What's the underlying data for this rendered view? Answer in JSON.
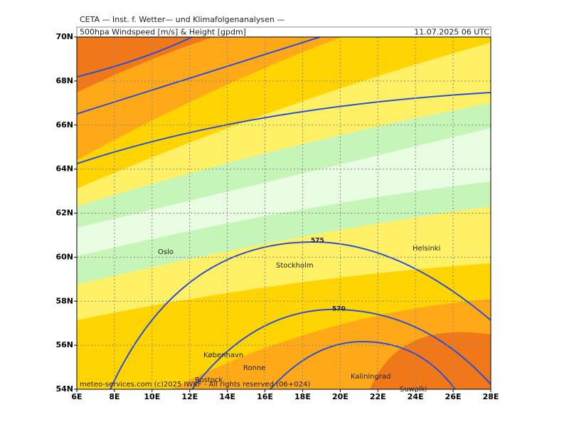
{
  "header": {
    "title": "CETA — Inst. f. Wetter— und Klimafolgenanalysen —",
    "subtitle": "500hpa Windspeed [m/s] & Height [gpdm]",
    "valid_time": "11.07.2025 06 UTC"
  },
  "lat_labels": [
    "70N",
    "68N",
    "66N",
    "64N",
    "62N",
    "60N",
    "58N",
    "56N",
    "54N"
  ],
  "lon_labels": [
    "6E",
    "8E",
    "10E",
    "12E",
    "14E",
    "16E",
    "18E",
    "20E",
    "22E",
    "24E",
    "26E",
    "28E"
  ],
  "places": [
    "Oslo",
    "Stockholm",
    "Helsinki",
    "København",
    "Ronne",
    "Rostock",
    "Kaliningrad",
    "Suwalki"
  ],
  "contour_labels": [
    "575",
    "570"
  ],
  "footer": "meteo-services.com (c)2025 IWKF - All rights reserved (06+024)"
}
